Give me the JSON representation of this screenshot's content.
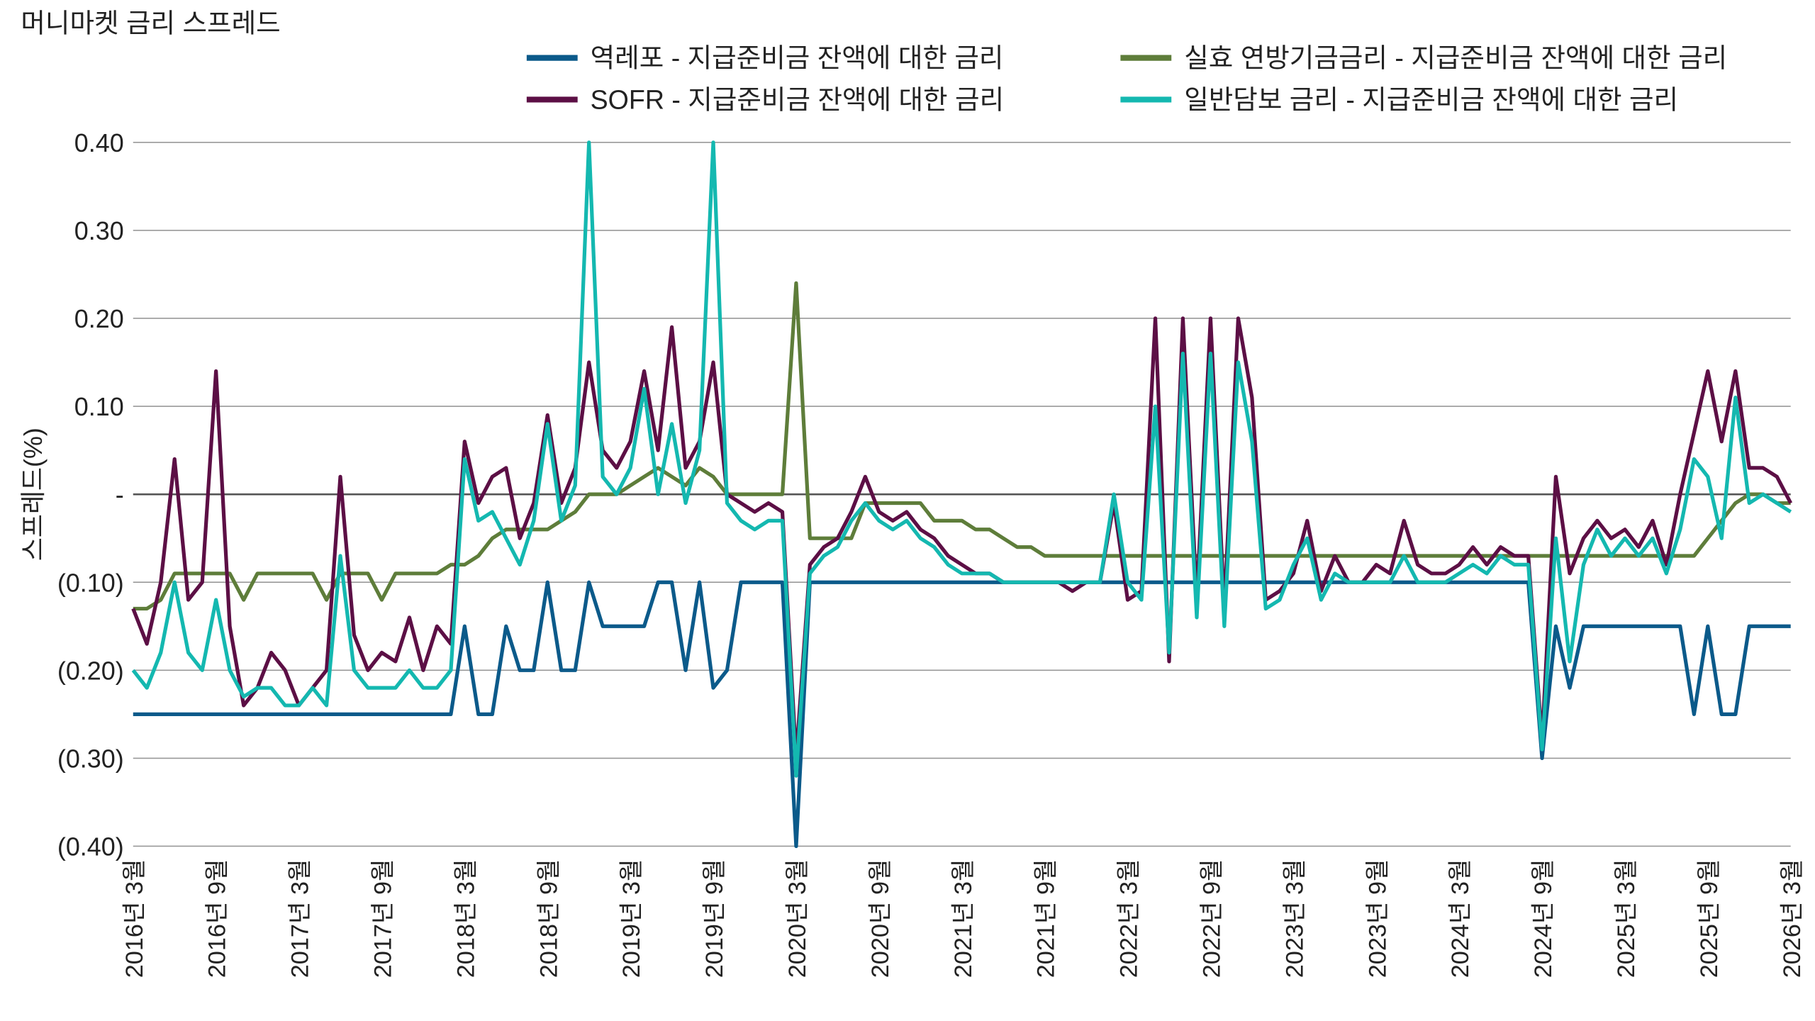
{
  "chart_data": {
    "type": "line",
    "title": "머니마켓 금리 스프레드",
    "y_label": "스프레드(%)",
    "categories": [
      "2016년 3월",
      null,
      null,
      null,
      null,
      null,
      "2016년 9월",
      null,
      null,
      null,
      null,
      null,
      "2017년 3월",
      null,
      null,
      null,
      null,
      null,
      "2017년 9월",
      null,
      null,
      null,
      null,
      null,
      "2018년 3월",
      null,
      null,
      null,
      null,
      null,
      "2018년 9월",
      null,
      null,
      null,
      null,
      null,
      "2019년 3월",
      null,
      null,
      null,
      null,
      null,
      "2019년 9월",
      null,
      null,
      null,
      null,
      null,
      "2020년 3월",
      null,
      null,
      null,
      null,
      null,
      "2020년 9월",
      null,
      null,
      null,
      null,
      null,
      "2021년 3월",
      null,
      null,
      null,
      null,
      null,
      "2021년 9월",
      null,
      null,
      null,
      null,
      null,
      "2022년 3월",
      null,
      null,
      null,
      null,
      null,
      "2022년 9월",
      null,
      null,
      null,
      null,
      null,
      "2023년 3월",
      null,
      null,
      null,
      null,
      null,
      "2023년 9월",
      null,
      null,
      null,
      null,
      null,
      "2024년 3월",
      null,
      null,
      null,
      null,
      null,
      "2024년 9월",
      null,
      null,
      null,
      null,
      null,
      "2025년 3월",
      null,
      null,
      null,
      null,
      null,
      "2025년 9월",
      null,
      null,
      null,
      null,
      null,
      "2026년 3월"
    ],
    "ylim": [
      -0.4,
      0.4
    ],
    "yticks": [
      {
        "value": 0.4,
        "label": "0.40"
      },
      {
        "value": 0.3,
        "label": "0.30"
      },
      {
        "value": 0.2,
        "label": "0.20"
      },
      {
        "value": 0.1,
        "label": "0.10"
      },
      {
        "value": 0,
        "label": "-"
      },
      {
        "value": -0.1,
        "label": "(0.10)"
      },
      {
        "value": -0.2,
        "label": "(0.20)"
      },
      {
        "value": -0.3,
        "label": "(0.30)"
      },
      {
        "value": -0.4,
        "label": "(0.40)"
      }
    ],
    "grid": true,
    "series": [
      {
        "name": "역레포 - 지급준비금 잔액에 대한 금리",
        "color": "#0b5a8a",
        "values": [
          -0.25,
          -0.25,
          -0.25,
          -0.25,
          -0.25,
          -0.25,
          -0.25,
          -0.25,
          -0.25,
          -0.25,
          -0.25,
          -0.25,
          -0.25,
          -0.25,
          -0.25,
          -0.25,
          -0.25,
          -0.25,
          -0.25,
          -0.25,
          -0.25,
          -0.25,
          -0.25,
          -0.25,
          -0.15,
          -0.25,
          -0.25,
          -0.15,
          -0.2,
          -0.2,
          -0.1,
          -0.2,
          -0.2,
          -0.1,
          -0.15,
          -0.15,
          -0.15,
          -0.15,
          -0.1,
          -0.1,
          -0.2,
          -0.1,
          -0.22,
          -0.2,
          -0.1,
          -0.1,
          -0.1,
          -0.1,
          -0.4,
          -0.1,
          -0.1,
          -0.1,
          -0.1,
          -0.1,
          -0.1,
          -0.1,
          -0.1,
          -0.1,
          -0.1,
          -0.1,
          -0.1,
          -0.1,
          -0.1,
          -0.1,
          -0.1,
          -0.1,
          -0.1,
          -0.1,
          -0.1,
          -0.1,
          -0.1,
          -0.1,
          -0.1,
          -0.1,
          -0.1,
          -0.1,
          -0.1,
          -0.1,
          -0.1,
          -0.1,
          -0.1,
          -0.1,
          -0.1,
          -0.1,
          -0.1,
          -0.1,
          -0.1,
          -0.1,
          -0.1,
          -0.1,
          -0.1,
          -0.1,
          -0.1,
          -0.1,
          -0.1,
          -0.1,
          -0.1,
          -0.1,
          -0.1,
          -0.1,
          -0.1,
          -0.1,
          -0.3,
          -0.15,
          -0.22,
          -0.15,
          -0.15,
          -0.15,
          -0.15,
          -0.15,
          -0.15,
          -0.15,
          -0.15,
          -0.25,
          -0.15,
          -0.25,
          -0.25,
          -0.15,
          -0.15,
          -0.15,
          -0.15
        ]
      },
      {
        "name": "SOFR - 지급준비금 잔액에 대한 금리",
        "color": "#5c0f45",
        "values": [
          -0.13,
          -0.17,
          -0.1,
          0.04,
          -0.12,
          -0.1,
          0.14,
          -0.15,
          -0.24,
          -0.22,
          -0.18,
          -0.2,
          -0.24,
          -0.22,
          -0.2,
          0.02,
          -0.16,
          -0.2,
          -0.18,
          -0.19,
          -0.14,
          -0.2,
          -0.15,
          -0.17,
          0.06,
          -0.01,
          0.02,
          0.03,
          -0.05,
          -0.01,
          0.09,
          -0.01,
          0.03,
          0.15,
          0.05,
          0.03,
          0.06,
          0.14,
          0.05,
          0.19,
          0.03,
          0.06,
          0.15,
          0,
          -0.01,
          -0.02,
          -0.01,
          -0.02,
          -0.3,
          -0.08,
          -0.06,
          -0.05,
          -0.02,
          0.02,
          -0.02,
          -0.03,
          -0.02,
          -0.04,
          -0.05,
          -0.07,
          -0.08,
          -0.09,
          -0.09,
          -0.1,
          -0.1,
          -0.1,
          -0.1,
          -0.1,
          -0.11,
          -0.1,
          -0.1,
          -0.01,
          -0.12,
          -0.11,
          0.2,
          -0.19,
          0.2,
          -0.12,
          0.2,
          -0.13,
          0.2,
          0.11,
          -0.12,
          -0.11,
          -0.09,
          -0.03,
          -0.11,
          -0.07,
          -0.1,
          -0.1,
          -0.08,
          -0.09,
          -0.03,
          -0.08,
          -0.09,
          -0.09,
          -0.08,
          -0.06,
          -0.08,
          -0.06,
          -0.07,
          -0.07,
          -0.28,
          0.02,
          -0.09,
          -0.05,
          -0.03,
          -0.05,
          -0.04,
          -0.06,
          -0.03,
          -0.08,
          0,
          0.07,
          0.14,
          0.06,
          0.14,
          0.03,
          0.03,
          0.02,
          -0.01
        ]
      },
      {
        "name": "실효 연방기금금리 - 지급준비금 잔액에 대한 금리",
        "color": "#5e7d3a",
        "values": [
          -0.13,
          -0.13,
          -0.12,
          -0.09,
          -0.09,
          -0.09,
          -0.09,
          -0.09,
          -0.12,
          -0.09,
          -0.09,
          -0.09,
          -0.09,
          -0.09,
          -0.12,
          -0.09,
          -0.09,
          -0.09,
          -0.12,
          -0.09,
          -0.09,
          -0.09,
          -0.09,
          -0.08,
          -0.08,
          -0.07,
          -0.05,
          -0.04,
          -0.04,
          -0.04,
          -0.04,
          -0.03,
          -0.02,
          0,
          0,
          0,
          0.01,
          0.02,
          0.03,
          0.02,
          0.01,
          0.03,
          0.02,
          0,
          0,
          0,
          0,
          0,
          0.24,
          -0.05,
          -0.05,
          -0.05,
          -0.05,
          -0.01,
          -0.01,
          -0.01,
          -0.01,
          -0.01,
          -0.03,
          -0.03,
          -0.03,
          -0.04,
          -0.04,
          -0.05,
          -0.06,
          -0.06,
          -0.07,
          -0.07,
          -0.07,
          -0.07,
          -0.07,
          -0.07,
          -0.07,
          -0.07,
          -0.07,
          -0.07,
          -0.07,
          -0.07,
          -0.07,
          -0.07,
          -0.07,
          -0.07,
          -0.07,
          -0.07,
          -0.07,
          -0.07,
          -0.07,
          -0.07,
          -0.07,
          -0.07,
          -0.07,
          -0.07,
          -0.07,
          -0.07,
          -0.07,
          -0.07,
          -0.07,
          -0.07,
          -0.07,
          -0.07,
          -0.07,
          -0.07,
          -0.07,
          -0.07,
          -0.07,
          -0.07,
          -0.07,
          -0.07,
          -0.07,
          -0.07,
          -0.07,
          -0.07,
          -0.07,
          -0.07,
          -0.05,
          -0.03,
          -0.01,
          0,
          0,
          -0.01,
          -0.01
        ]
      },
      {
        "name": "일반담보 금리 - 지급준비금 잔액에 대한 금리",
        "color": "#14b8b0",
        "values": [
          -0.2,
          -0.22,
          -0.18,
          -0.1,
          -0.18,
          -0.2,
          -0.12,
          -0.2,
          -0.23,
          -0.22,
          -0.22,
          -0.24,
          -0.24,
          -0.22,
          -0.24,
          -0.07,
          -0.2,
          -0.22,
          -0.22,
          -0.22,
          -0.2,
          -0.22,
          -0.22,
          -0.2,
          0.04,
          -0.03,
          -0.02,
          -0.05,
          -0.08,
          -0.03,
          0.08,
          -0.03,
          0.01,
          0.4,
          0.02,
          0,
          0.03,
          0.12,
          0,
          0.08,
          -0.01,
          0.05,
          0.4,
          -0.01,
          -0.03,
          -0.04,
          -0.03,
          -0.03,
          -0.32,
          -0.09,
          -0.07,
          -0.06,
          -0.03,
          -0.01,
          -0.03,
          -0.04,
          -0.03,
          -0.05,
          -0.06,
          -0.08,
          -0.09,
          -0.09,
          -0.09,
          -0.1,
          -0.1,
          -0.1,
          -0.1,
          -0.1,
          -0.1,
          -0.1,
          -0.1,
          0,
          -0.1,
          -0.12,
          0.1,
          -0.18,
          0.16,
          -0.14,
          0.16,
          -0.15,
          0.15,
          0.06,
          -0.13,
          -0.12,
          -0.08,
          -0.05,
          -0.12,
          -0.09,
          -0.1,
          -0.1,
          -0.1,
          -0.1,
          -0.07,
          -0.1,
          -0.1,
          -0.1,
          -0.09,
          -0.08,
          -0.09,
          -0.07,
          -0.08,
          -0.08,
          -0.29,
          -0.05,
          -0.19,
          -0.08,
          -0.04,
          -0.07,
          -0.05,
          -0.07,
          -0.05,
          -0.09,
          -0.04,
          0.04,
          0.02,
          -0.05,
          0.11,
          -0.01,
          0,
          -0.01,
          -0.02
        ]
      }
    ]
  }
}
